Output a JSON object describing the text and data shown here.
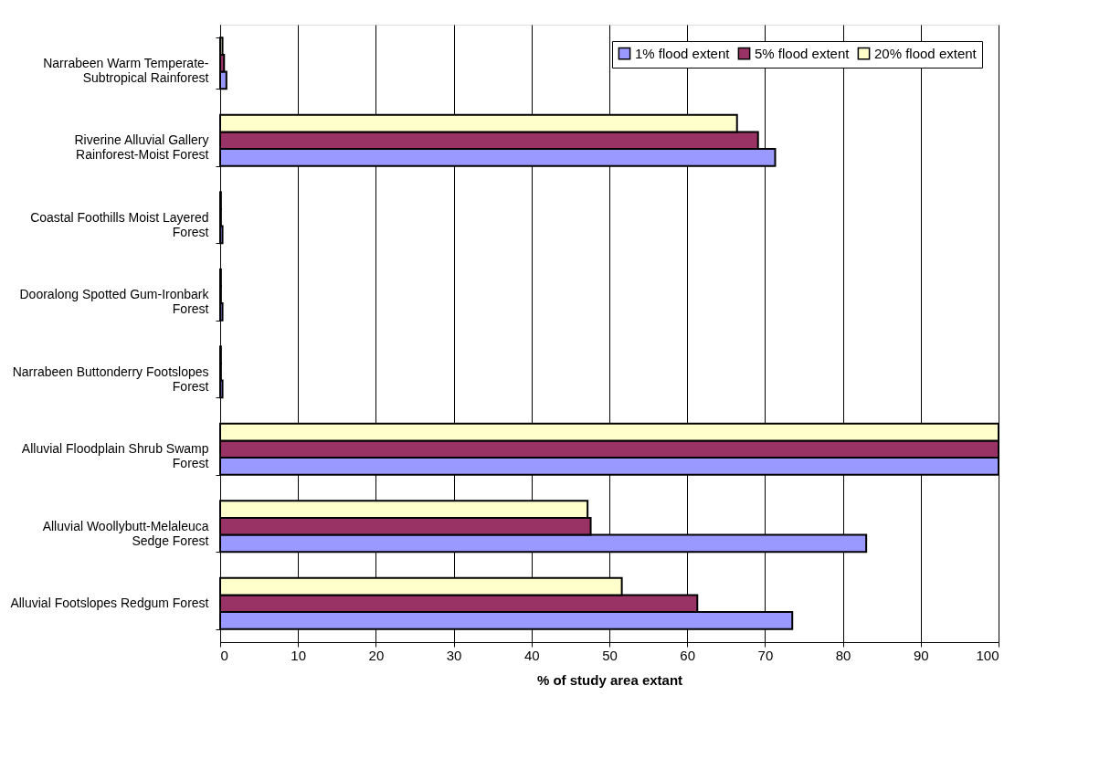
{
  "chart_data": {
    "type": "bar",
    "orientation": "horizontal",
    "xlabel": "% of study area extant",
    "categories": [
      "Narrabeen Warm Temperate-Subtropical Rainforest",
      "Riverine Alluvial Gallery Rainforest-Moist Forest",
      "Coastal Foothills Moist Layered Forest",
      "Dooralong Spotted Gum-Ironbark Forest",
      "Narrabeen Buttonderry Footslopes Forest",
      "Alluvial Floodplain Shrub Swamp Forest",
      "Alluvial Woollybutt-Melaleuca Sedge Forest",
      "Alluvial Footslopes Redgum Forest"
    ],
    "series": [
      {
        "name": "1% flood extent",
        "color": "#9999ff",
        "values": [
          0.8,
          71.3,
          0.3,
          0.3,
          0.3,
          100,
          83.0,
          73.5
        ]
      },
      {
        "name": "5% flood extent",
        "color": "#993366",
        "values": [
          0.5,
          69.1,
          0.1,
          0.1,
          0.1,
          100,
          47.6,
          61.3
        ]
      },
      {
        "name": "20% flood extent",
        "color": "#ffffcc",
        "values": [
          0.3,
          66.4,
          0.1,
          0.1,
          0.1,
          100,
          47.2,
          51.6
        ]
      }
    ],
    "xlim": [
      0,
      100
    ],
    "xticks": [
      0,
      10,
      20,
      30,
      40,
      50,
      60,
      70,
      80,
      90,
      100
    ],
    "grid": "x",
    "legend": "top right"
  }
}
